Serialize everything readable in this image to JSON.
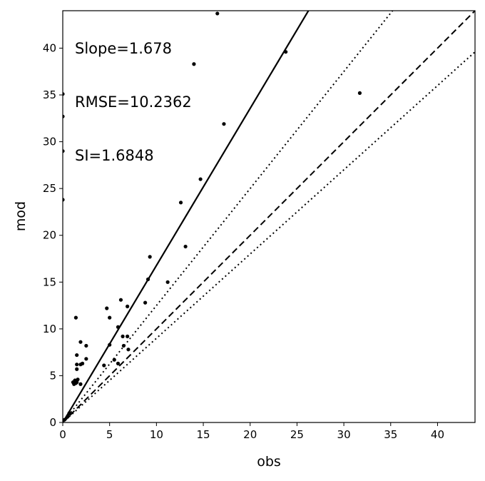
{
  "chart_data": {
    "type": "scatter",
    "xlabel": "obs",
    "ylabel": "mod",
    "xlim": [
      0,
      44
    ],
    "ylim": [
      0,
      44
    ],
    "grid": false,
    "xticks": [
      0,
      5,
      10,
      15,
      20,
      25,
      30,
      35,
      40
    ],
    "yticks": [
      0,
      5,
      10,
      15,
      20,
      25,
      30,
      35,
      40
    ],
    "annotations": [
      "Slope=1.678",
      "RMSE=10.2362",
      "SI=1.6848"
    ],
    "fit_line": {
      "slope": 1.678,
      "style": "solid"
    },
    "reference_lines": [
      {
        "slope": 1.0,
        "style": "dashed"
      },
      {
        "slope": 1.25,
        "style": "dotted"
      },
      {
        "slope": 0.9,
        "style": "dotted"
      }
    ],
    "points": [
      [
        0.0,
        35.1
      ],
      [
        0.0,
        32.7
      ],
      [
        0.0,
        29.0
      ],
      [
        0.0,
        23.8
      ],
      [
        16.5,
        43.7
      ],
      [
        14.0,
        38.3
      ],
      [
        23.8,
        39.6
      ],
      [
        31.7,
        35.2
      ],
      [
        17.2,
        31.9
      ],
      [
        14.7,
        26.0
      ],
      [
        12.6,
        23.5
      ],
      [
        13.1,
        18.8
      ],
      [
        9.3,
        17.7
      ],
      [
        9.1,
        15.3
      ],
      [
        11.2,
        15.0
      ],
      [
        8.8,
        12.8
      ],
      [
        6.9,
        12.4
      ],
      [
        6.2,
        13.1
      ],
      [
        4.7,
        12.2
      ],
      [
        5.0,
        11.2
      ],
      [
        5.9,
        10.2
      ],
      [
        6.4,
        9.2
      ],
      [
        6.9,
        9.2
      ],
      [
        6.5,
        8.2
      ],
      [
        7.0,
        7.8
      ],
      [
        5.0,
        8.3
      ],
      [
        5.5,
        6.7
      ],
      [
        4.4,
        6.1
      ],
      [
        5.9,
        6.3
      ],
      [
        1.4,
        11.2
      ],
      [
        1.9,
        8.6
      ],
      [
        2.5,
        8.2
      ],
      [
        1.5,
        7.2
      ],
      [
        2.5,
        6.8
      ],
      [
        1.5,
        6.2
      ],
      [
        1.9,
        6.2
      ],
      [
        2.1,
        6.3
      ],
      [
        1.5,
        5.7
      ],
      [
        1.1,
        4.3
      ],
      [
        1.3,
        4.5
      ],
      [
        1.4,
        4.2
      ],
      [
        1.6,
        4.6
      ],
      [
        1.2,
        4.1
      ],
      [
        1.9,
        4.1
      ],
      [
        1.5,
        4.3
      ],
      [
        0.7,
        1.0
      ],
      [
        0.5,
        0.6
      ],
      [
        0.2,
        0.3
      ]
    ]
  }
}
